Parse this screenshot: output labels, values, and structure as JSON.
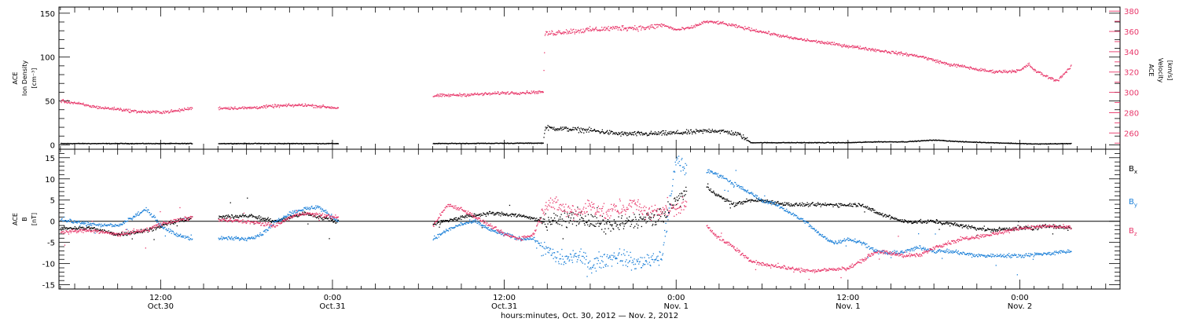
{
  "colors": {
    "black": "#000000",
    "pink": "#e8376a",
    "blue": "#1a7fd8"
  },
  "x_axis": {
    "title": "hours:minutes, Oct. 30, 2012 — Nov.  2, 2012",
    "ticks": [
      {
        "hours": 12,
        "time": "12:00",
        "date": "Oct.30"
      },
      {
        "hours": 24,
        "time": "0:00",
        "date": "Oct.31"
      },
      {
        "hours": 36,
        "time": "12:00",
        "date": "Oct.31"
      },
      {
        "hours": 48,
        "time": "0:00",
        "date": "Nov. 1"
      },
      {
        "hours": 60,
        "time": "12:00",
        "date": "Nov. 1"
      },
      {
        "hours": 72,
        "time": "0:00",
        "date": "Nov. 2"
      }
    ],
    "range_hours": [
      4.9,
      79
    ]
  },
  "chart_data": [
    {
      "type": "scatter",
      "panel": "ion-density-velocity",
      "ylabel_lines": [
        "ACE",
        "Ion Density",
        "[cm⁻³]"
      ],
      "ylim": [
        -5,
        157
      ],
      "yticks": [
        0,
        50,
        100,
        150
      ],
      "right_axis": {
        "ylabel_lines": [
          "ACE",
          "Velocity",
          "[km/s]"
        ],
        "ylim": [
          244,
          384
        ],
        "yticks": [
          260,
          280,
          300,
          320,
          340,
          360,
          380
        ]
      },
      "data_gaps_hours": [
        [
          14.2,
          16.0
        ],
        [
          24.4,
          31.0
        ]
      ],
      "series": [
        {
          "axis": "left",
          "color": "black",
          "points": [
            [
              5,
              2
            ],
            [
              14.2,
              2
            ],
            [
              16,
              2
            ],
            [
              24.4,
              2
            ],
            [
              31,
              2
            ],
            [
              38.7,
              2.5
            ],
            [
              38.8,
              20
            ],
            [
              42,
              17
            ],
            [
              44,
              13
            ],
            [
              46,
              13
            ],
            [
              48,
              14
            ],
            [
              49.2,
              15
            ],
            [
              50.5,
              17
            ],
            [
              51.6,
              15
            ],
            [
              52.4,
              12
            ],
            [
              53.2,
              3
            ],
            [
              60,
              3
            ],
            [
              62,
              4
            ],
            [
              64,
              4
            ],
            [
              66,
              6
            ],
            [
              68,
              4
            ],
            [
              70,
              3
            ],
            [
              72,
              2
            ],
            [
              73,
              1.5
            ],
            [
              75.6,
              2
            ]
          ]
        },
        {
          "axis": "right",
          "color": "pink",
          "points": [
            [
              5,
              292
            ],
            [
              6,
              290
            ],
            [
              7,
              287
            ],
            [
              8,
              285
            ],
            [
              9,
              284
            ],
            [
              10,
              282
            ],
            [
              11,
              281
            ],
            [
              12,
              281
            ],
            [
              13,
              282
            ],
            [
              14.2,
              285
            ],
            [
              16,
              285
            ],
            [
              18,
              285
            ],
            [
              20,
              287
            ],
            [
              22,
              288
            ],
            [
              24.4,
              285
            ],
            [
              31,
              297
            ],
            [
              33,
              298
            ],
            [
              35,
              299
            ],
            [
              36,
              300
            ],
            [
              37,
              300
            ],
            [
              38.7,
              301
            ],
            [
              38.8,
              358
            ],
            [
              40,
              360
            ],
            [
              42,
              362
            ],
            [
              44,
              364
            ],
            [
              46,
              364
            ],
            [
              47,
              367
            ],
            [
              48,
              362
            ],
            [
              49,
              364
            ],
            [
              50,
              370
            ],
            [
              51,
              369
            ],
            [
              52,
              366
            ],
            [
              53,
              363
            ],
            [
              54,
              360
            ],
            [
              55,
              357
            ],
            [
              56,
              354
            ],
            [
              58,
              350
            ],
            [
              60,
              346
            ],
            [
              62,
              342
            ],
            [
              63,
              340
            ],
            [
              64,
              338
            ],
            [
              65,
              336
            ],
            [
              66,
              332
            ],
            [
              67,
              328
            ],
            [
              68,
              326
            ],
            [
              69,
              323
            ],
            [
              70,
              321
            ],
            [
              71,
              321
            ],
            [
              72,
              322
            ],
            [
              72.6,
              328
            ],
            [
              73,
              322
            ],
            [
              74,
              315
            ],
            [
              74.6,
              312
            ],
            [
              75,
              318
            ],
            [
              75.6,
              326
            ]
          ]
        }
      ]
    },
    {
      "type": "scatter",
      "panel": "magnetic-field",
      "ylabel_lines": [
        "ACE",
        "B",
        "[nT]"
      ],
      "ylim": [
        -16,
        17
      ],
      "yticks": [
        -15,
        -10,
        -5,
        0,
        5,
        10,
        15
      ],
      "zero_line": true,
      "data_gaps_hours": [
        [
          14.2,
          16.0
        ],
        [
          24.4,
          31.0
        ],
        [
          48.7,
          50.1
        ]
      ],
      "series": [
        {
          "name": "B",
          "sub": "x",
          "color": "black",
          "points": [
            [
              5,
              -1.5
            ],
            [
              7,
              -1.5
            ],
            [
              9,
              -3
            ],
            [
              11,
              -2
            ],
            [
              12,
              -1
            ],
            [
              14.2,
              1
            ],
            [
              16,
              1
            ],
            [
              18,
              1.5
            ],
            [
              20,
              0
            ],
            [
              22,
              2
            ],
            [
              24.4,
              0
            ],
            [
              31,
              -0.5
            ],
            [
              33,
              1
            ],
            [
              35,
              2
            ],
            [
              37,
              1.5
            ],
            [
              39,
              0
            ],
            [
              41,
              1
            ],
            [
              43,
              -1
            ],
            [
              45,
              0
            ],
            [
              47,
              1
            ],
            [
              48,
              5
            ],
            [
              48.7,
              7
            ],
            [
              50.1,
              8
            ],
            [
              51,
              6
            ],
            [
              52,
              4
            ],
            [
              53,
              5
            ],
            [
              54,
              5
            ],
            [
              56,
              4
            ],
            [
              58,
              4
            ],
            [
              60,
              4
            ],
            [
              61,
              4
            ],
            [
              62,
              2
            ],
            [
              64,
              0
            ],
            [
              66,
              0
            ],
            [
              68,
              -1
            ],
            [
              70,
              -2
            ],
            [
              72,
              -1.5
            ],
            [
              73,
              -1.5
            ],
            [
              74,
              -1
            ],
            [
              75.6,
              -1.5
            ]
          ]
        },
        {
          "name": "B",
          "sub": "y",
          "color": "blue",
          "points": [
            [
              5,
              0.5
            ],
            [
              7,
              -0.5
            ],
            [
              9,
              -1
            ],
            [
              10,
              1
            ],
            [
              11,
              3
            ],
            [
              12,
              -1
            ],
            [
              13,
              -3
            ],
            [
              14.2,
              -4
            ],
            [
              16,
              -4
            ],
            [
              18,
              -4
            ],
            [
              19,
              -3
            ],
            [
              20,
              0
            ],
            [
              21,
              2
            ],
            [
              22,
              3
            ],
            [
              23,
              3.5
            ],
            [
              24.4,
              0
            ],
            [
              31,
              -4
            ],
            [
              32,
              -2
            ],
            [
              33,
              -0.5
            ],
            [
              34,
              0
            ],
            [
              35,
              -2
            ],
            [
              36,
              -3
            ],
            [
              37,
              -4
            ],
            [
              38,
              -4
            ],
            [
              39,
              -7
            ],
            [
              40,
              -9
            ],
            [
              41,
              -8
            ],
            [
              42,
              -10
            ],
            [
              43,
              -9
            ],
            [
              44,
              -8
            ],
            [
              45,
              -10
            ],
            [
              46,
              -9
            ],
            [
              47,
              -8
            ],
            [
              48,
              15
            ],
            [
              48.7,
              12
            ],
            [
              50.1,
              12
            ],
            [
              51,
              11
            ],
            [
              52,
              9
            ],
            [
              53,
              7
            ],
            [
              54,
              5
            ],
            [
              55,
              4
            ],
            [
              56,
              2
            ],
            [
              57,
              0
            ],
            [
              58,
              -3
            ],
            [
              59,
              -5
            ],
            [
              60,
              -4
            ],
            [
              61,
              -5
            ],
            [
              62,
              -7
            ],
            [
              63,
              -7.5
            ],
            [
              64,
              -7
            ],
            [
              65,
              -6
            ],
            [
              66,
              -7
            ],
            [
              67,
              -7
            ],
            [
              68,
              -7.5
            ],
            [
              69,
              -8
            ],
            [
              70,
              -8
            ],
            [
              72,
              -8
            ],
            [
              74,
              -7.5
            ],
            [
              75.6,
              -7
            ]
          ]
        },
        {
          "name": "B",
          "sub": "z",
          "color": "pink",
          "points": [
            [
              5,
              -2.5
            ],
            [
              7,
              -2
            ],
            [
              9,
              -3
            ],
            [
              11,
              -2
            ],
            [
              12,
              -0.5
            ],
            [
              14.2,
              1
            ],
            [
              16,
              0.5
            ],
            [
              18,
              0
            ],
            [
              20,
              -1
            ],
            [
              21,
              1
            ],
            [
              22,
              2
            ],
            [
              24.4,
              1
            ],
            [
              31,
              -1
            ],
            [
              32,
              4
            ],
            [
              33,
              3
            ],
            [
              34,
              1
            ],
            [
              35,
              -1
            ],
            [
              36,
              -3
            ],
            [
              37,
              -4
            ],
            [
              38,
              -3
            ],
            [
              39,
              5
            ],
            [
              40,
              3
            ],
            [
              41,
              2
            ],
            [
              42,
              4
            ],
            [
              43,
              2
            ],
            [
              44,
              3
            ],
            [
              45,
              4
            ],
            [
              46,
              2
            ],
            [
              47,
              3
            ],
            [
              48,
              3
            ],
            [
              48.7,
              4
            ],
            [
              50.1,
              -1
            ],
            [
              51,
              -4
            ],
            [
              52,
              -6
            ],
            [
              53,
              -9
            ],
            [
              54,
              -10
            ],
            [
              55,
              -10.5
            ],
            [
              56,
              -11
            ],
            [
              57,
              -11.5
            ],
            [
              58,
              -11.5
            ],
            [
              60,
              -11
            ],
            [
              61,
              -9
            ],
            [
              62,
              -7
            ],
            [
              63,
              -7.5
            ],
            [
              64,
              -8
            ],
            [
              65,
              -8
            ],
            [
              66,
              -6
            ],
            [
              67,
              -5
            ],
            [
              68,
              -4
            ],
            [
              69,
              -3.5
            ],
            [
              70,
              -3
            ],
            [
              72,
              -1.5
            ],
            [
              74,
              -1
            ],
            [
              75.6,
              -1.5
            ]
          ]
        }
      ]
    }
  ]
}
